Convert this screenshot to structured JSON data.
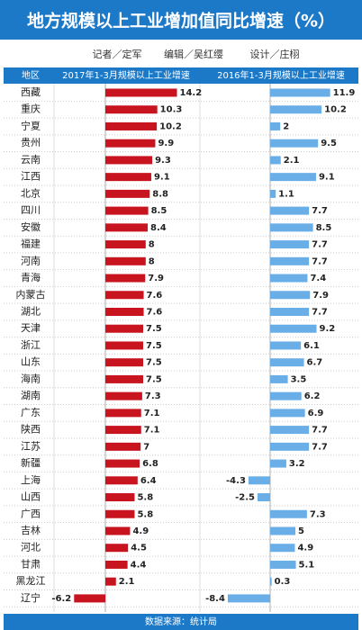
{
  "chart_data": {
    "type": "hbar-pair",
    "title": "地方规模以上工业增加值同比增速（%）",
    "credits": [
      "记者／定军",
      "编辑／吴红缨",
      "设计／庄栩"
    ],
    "category_header": "地区",
    "source": "数据来源：统计局",
    "categories": [
      "西藏",
      "重庆",
      "宁夏",
      "贵州",
      "云南",
      "江西",
      "北京",
      "四川",
      "安徽",
      "福建",
      "河南",
      "青海",
      "内蒙古",
      "湖北",
      "天津",
      "浙江",
      "山东",
      "海南",
      "湖南",
      "广东",
      "陕西",
      "江苏",
      "新疆",
      "上海",
      "山西",
      "广西",
      "吉林",
      "河北",
      "甘肃",
      "黑龙江",
      "辽宁"
    ],
    "series": [
      {
        "name": "2017年1-3月规模以上工业增速",
        "color": "#c8141e",
        "values": [
          14.2,
          10.3,
          10.2,
          9.9,
          9.3,
          9.1,
          8.8,
          8.5,
          8.4,
          8,
          8,
          7.9,
          7.6,
          7.6,
          7.5,
          7.5,
          7.5,
          7.5,
          7.3,
          7.1,
          7.1,
          7,
          6.8,
          6.4,
          5.8,
          5.8,
          4.9,
          4.5,
          4.4,
          2.1,
          -6.2
        ]
      },
      {
        "name": "2016年1-3月规模以上工业增速",
        "color": "#6aaee8",
        "values": [
          11.9,
          10.2,
          2,
          9.5,
          2.1,
          9.1,
          1.1,
          7.7,
          8.5,
          7.7,
          7.7,
          7.4,
          7.9,
          7.7,
          9.2,
          6.1,
          6.7,
          3.5,
          6.2,
          6.9,
          7.7,
          7.7,
          3.2,
          -4.3,
          -2.5,
          7.3,
          5,
          4.9,
          5.1,
          0.3,
          -8.4
        ]
      }
    ]
  }
}
